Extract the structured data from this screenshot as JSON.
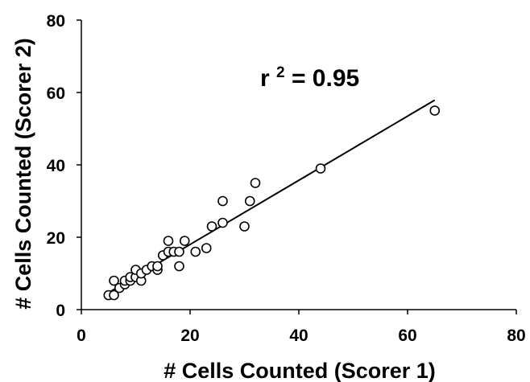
{
  "chart_data": {
    "type": "scatter",
    "title": "",
    "xlabel": "# Cells Counted (Scorer 1)",
    "ylabel": "# Cells Counted (Scorer 2)",
    "xlim": [
      0,
      80
    ],
    "ylim": [
      0,
      80
    ],
    "xticks": [
      "0",
      "20",
      "40",
      "60",
      "80"
    ],
    "yticks": [
      "0",
      "20",
      "40",
      "60",
      "80"
    ],
    "grid": false,
    "legend": "none",
    "marker": "open-circle",
    "annotation": {
      "base": "r",
      "superscript": "2",
      "text": "= 0.95"
    },
    "trendline": {
      "type": "linear",
      "from": [
        5,
        4.7
      ],
      "to": [
        65,
        57.9
      ]
    },
    "series": [
      {
        "x": [
          5,
          6,
          6,
          7,
          8,
          8,
          9,
          9,
          10,
          10,
          11,
          11,
          12,
          13,
          14,
          14,
          15,
          16,
          16,
          17,
          18,
          18,
          19,
          21,
          23,
          24,
          26,
          26,
          30,
          31,
          32,
          44,
          65
        ],
        "y": [
          4,
          4,
          8,
          6,
          7,
          8,
          8,
          9,
          9,
          11,
          8,
          10,
          11,
          12,
          11,
          12,
          15,
          16,
          19,
          16,
          12,
          16,
          19,
          16,
          17,
          23,
          24,
          30,
          23,
          30,
          35,
          39,
          55
        ]
      }
    ],
    "colors": {
      "axis": "#000000",
      "marker_stroke": "#000000",
      "marker_fill": "#ffffff",
      "trendline": "#000000"
    }
  }
}
